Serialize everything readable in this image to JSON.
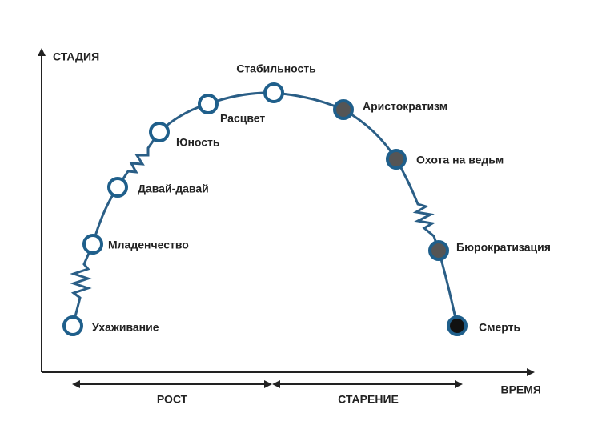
{
  "axes": {
    "y_label": "СТАДИЯ",
    "x_label": "ВРЕМЯ"
  },
  "phases": [
    "РОСТ",
    "СТАРЕНИЕ"
  ],
  "nodes": [
    {
      "label": "Ухаживание",
      "color": "#ffffff"
    },
    {
      "label": "Младенчество",
      "color": "#ffffff"
    },
    {
      "label": "Давай-давай",
      "color": "#ffffff"
    },
    {
      "label": "Юность",
      "color": "#ffffff"
    },
    {
      "label": "Расцвет",
      "color": "#ffffff"
    },
    {
      "label": "Стабильность",
      "color": "#ffffff"
    },
    {
      "label": "Аристократизм",
      "color": "#555555"
    },
    {
      "label": "Охота на ведьм",
      "color": "#555555"
    },
    {
      "label": "Бюрократизация",
      "color": "#555555"
    },
    {
      "label": "Смерть",
      "color": "#111111"
    }
  ]
}
